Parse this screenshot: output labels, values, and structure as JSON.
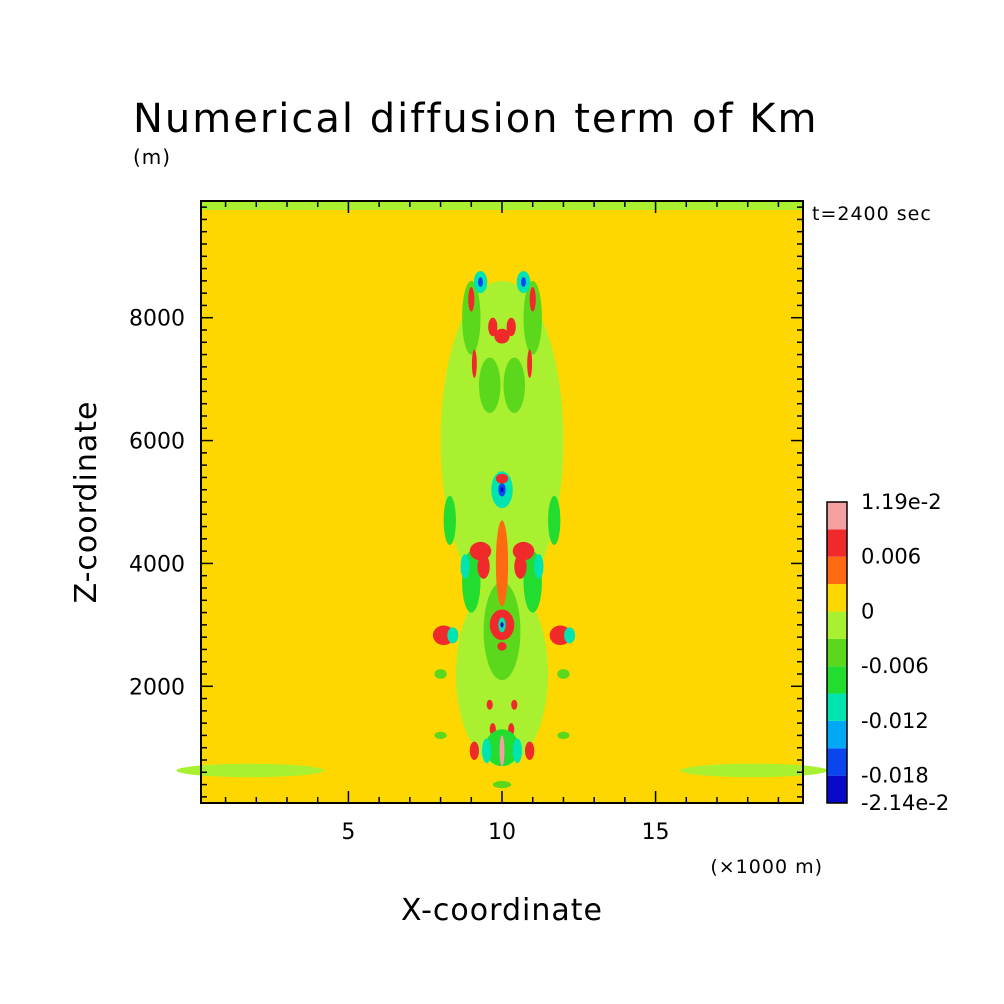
{
  "chart_data": {
    "type": "heatmap",
    "title": "Numerical diffusion term of Km",
    "subtitle": "(m)",
    "time_label": "t=2400 sec",
    "xlabel": "X-coordinate",
    "ylabel": "Z-coordinate",
    "x_unit": "(×1000 m)",
    "xlim": [
      0.2,
      19.8
    ],
    "ylim": [
      100,
      9900
    ],
    "x_ticks": [
      5,
      10,
      15
    ],
    "y_ticks": [
      2000,
      4000,
      6000,
      8000
    ],
    "background_value": 0,
    "colorbar": {
      "levels": [
        {
          "low": -0.0214,
          "high": -0.018,
          "color": "#0a08c8"
        },
        {
          "low": -0.018,
          "high": -0.015,
          "color": "#0a46f0"
        },
        {
          "low": -0.015,
          "high": -0.012,
          "color": "#00a8f5"
        },
        {
          "low": -0.012,
          "high": -0.009,
          "color": "#00e4b0"
        },
        {
          "low": -0.009,
          "high": -0.006,
          "color": "#22dc30"
        },
        {
          "low": -0.006,
          "high": -0.003,
          "color": "#5cd81c"
        },
        {
          "low": -0.003,
          "high": 0,
          "color": "#a8f030"
        },
        {
          "low": 0,
          "high": 0.003,
          "color": "#ffd700"
        },
        {
          "low": 0.003,
          "high": 0.006,
          "color": "#ff6a10"
        },
        {
          "low": 0.006,
          "high": 0.009,
          "color": "#f02a2a"
        },
        {
          "low": 0.009,
          "high": 0.0119,
          "color": "#f5a0a0"
        }
      ],
      "labels": [
        "1.19e-2",
        "0.006",
        "0",
        "-0.006",
        "-0.012",
        "-0.018",
        "-2.14e-2"
      ]
    },
    "features": [
      {
        "x": 10.0,
        "z": 6000,
        "rx": 2.0,
        "rz": 2600,
        "value": -0.002
      },
      {
        "x": 10.0,
        "z": 2200,
        "rx": 1.5,
        "rz": 1500,
        "value": -0.002
      },
      {
        "x": 1.8,
        "z": 630,
        "rx": 2.4,
        "rz": 110,
        "value": -0.002
      },
      {
        "x": 18.2,
        "z": 630,
        "rx": 2.4,
        "rz": 110,
        "value": -0.002
      },
      {
        "x": 9.0,
        "z": 8000,
        "rx": 0.3,
        "rz": 600,
        "value": -0.005
      },
      {
        "x": 11.0,
        "z": 8000,
        "rx": 0.3,
        "rz": 600,
        "value": -0.005
      },
      {
        "x": 9.6,
        "z": 6900,
        "rx": 0.35,
        "rz": 450,
        "value": -0.005
      },
      {
        "x": 10.4,
        "z": 6900,
        "rx": 0.35,
        "rz": 450,
        "value": -0.005
      },
      {
        "x": 8.3,
        "z": 4700,
        "rx": 0.2,
        "rz": 400,
        "value": -0.007
      },
      {
        "x": 11.7,
        "z": 4700,
        "rx": 0.2,
        "rz": 400,
        "value": -0.007
      },
      {
        "x": 9.0,
        "z": 3700,
        "rx": 0.3,
        "rz": 500,
        "value": -0.007
      },
      {
        "x": 11.0,
        "z": 3700,
        "rx": 0.3,
        "rz": 500,
        "value": -0.007
      },
      {
        "x": 10.0,
        "z": 2900,
        "rx": 0.6,
        "rz": 800,
        "value": -0.005
      },
      {
        "x": 9.3,
        "z": 8580,
        "rx": 0.22,
        "rz": 180,
        "value": -0.012
      },
      {
        "x": 10.7,
        "z": 8580,
        "rx": 0.22,
        "rz": 180,
        "value": -0.012
      },
      {
        "x": 9.3,
        "z": 8580,
        "rx": 0.08,
        "rz": 80,
        "value": -0.017
      },
      {
        "x": 10.7,
        "z": 8580,
        "rx": 0.08,
        "rz": 80,
        "value": -0.017
      },
      {
        "x": 10.0,
        "z": 7700,
        "rx": 0.25,
        "rz": 120,
        "value": 0.007
      },
      {
        "x": 9.7,
        "z": 7850,
        "rx": 0.15,
        "rz": 150,
        "value": 0.007
      },
      {
        "x": 10.3,
        "z": 7850,
        "rx": 0.15,
        "rz": 150,
        "value": 0.007
      },
      {
        "x": 9.0,
        "z": 8300,
        "rx": 0.1,
        "rz": 200,
        "value": 0.007
      },
      {
        "x": 11.0,
        "z": 8300,
        "rx": 0.1,
        "rz": 200,
        "value": 0.007
      },
      {
        "x": 9.1,
        "z": 7250,
        "rx": 0.08,
        "rz": 230,
        "value": 0.007
      },
      {
        "x": 10.9,
        "z": 7250,
        "rx": 0.08,
        "rz": 230,
        "value": 0.007
      },
      {
        "x": 10.0,
        "z": 5200,
        "rx": 0.35,
        "rz": 300,
        "value": -0.012
      },
      {
        "x": 10.0,
        "z": 5200,
        "rx": 0.12,
        "rz": 110,
        "value": -0.017
      },
      {
        "x": 10.0,
        "z": 5200,
        "rx": 0.05,
        "rz": 40,
        "value": -0.0214
      },
      {
        "x": 10.0,
        "z": 5380,
        "rx": 0.2,
        "rz": 80,
        "value": 0.007
      },
      {
        "x": 10.0,
        "z": 4000,
        "rx": 0.2,
        "rz": 700,
        "value": 0.005
      },
      {
        "x": 9.3,
        "z": 4200,
        "rx": 0.35,
        "rz": 150,
        "value": 0.007
      },
      {
        "x": 10.7,
        "z": 4200,
        "rx": 0.35,
        "rz": 150,
        "value": 0.007
      },
      {
        "x": 9.4,
        "z": 3950,
        "rx": 0.2,
        "rz": 200,
        "value": 0.007
      },
      {
        "x": 10.6,
        "z": 3950,
        "rx": 0.2,
        "rz": 200,
        "value": 0.007
      },
      {
        "x": 8.8,
        "z": 3950,
        "rx": 0.15,
        "rz": 200,
        "value": -0.012
      },
      {
        "x": 11.2,
        "z": 3950,
        "rx": 0.15,
        "rz": 200,
        "value": -0.012
      },
      {
        "x": 10.0,
        "z": 3000,
        "rx": 0.4,
        "rz": 250,
        "value": 0.007
      },
      {
        "x": 10.0,
        "z": 3000,
        "rx": 0.12,
        "rz": 120,
        "value": -0.012
      },
      {
        "x": 10.0,
        "z": 3000,
        "rx": 0.05,
        "rz": 45,
        "value": -0.0214
      },
      {
        "x": 10.0,
        "z": 2650,
        "rx": 0.15,
        "rz": 70,
        "value": 0.007
      },
      {
        "x": 8.1,
        "z": 2830,
        "rx": 0.35,
        "rz": 160,
        "value": 0.007
      },
      {
        "x": 8.4,
        "z": 2830,
        "rx": 0.18,
        "rz": 130,
        "value": -0.012
      },
      {
        "x": 11.9,
        "z": 2830,
        "rx": 0.35,
        "rz": 160,
        "value": 0.007
      },
      {
        "x": 12.2,
        "z": 2830,
        "rx": 0.18,
        "rz": 130,
        "value": -0.012
      },
      {
        "x": 9.6,
        "z": 1700,
        "rx": 0.1,
        "rz": 80,
        "value": 0.007
      },
      {
        "x": 10.4,
        "z": 1700,
        "rx": 0.1,
        "rz": 80,
        "value": 0.007
      },
      {
        "x": 9.7,
        "z": 1300,
        "rx": 0.1,
        "rz": 100,
        "value": 0.007
      },
      {
        "x": 10.3,
        "z": 1300,
        "rx": 0.1,
        "rz": 100,
        "value": 0.007
      },
      {
        "x": 10.0,
        "z": 1000,
        "rx": 0.55,
        "rz": 300,
        "value": -0.007
      },
      {
        "x": 9.5,
        "z": 950,
        "rx": 0.15,
        "rz": 200,
        "value": -0.012
      },
      {
        "x": 10.5,
        "z": 950,
        "rx": 0.15,
        "rz": 200,
        "value": -0.012
      },
      {
        "x": 9.1,
        "z": 950,
        "rx": 0.15,
        "rz": 150,
        "value": 0.007
      },
      {
        "x": 10.9,
        "z": 950,
        "rx": 0.15,
        "rz": 150,
        "value": 0.007
      },
      {
        "x": 10.0,
        "z": 950,
        "rx": 0.08,
        "rz": 250,
        "value": 0.011
      },
      {
        "x": 8.0,
        "z": 2200,
        "rx": 0.2,
        "rz": 80,
        "value": -0.006
      },
      {
        "x": 12.0,
        "z": 2200,
        "rx": 0.2,
        "rz": 80,
        "value": -0.006
      },
      {
        "x": 8.0,
        "z": 1200,
        "rx": 0.2,
        "rz": 60,
        "value": -0.006
      },
      {
        "x": 12.0,
        "z": 1200,
        "rx": 0.2,
        "rz": 60,
        "value": -0.006
      },
      {
        "x": 10.0,
        "z": 400,
        "rx": 0.3,
        "rz": 60,
        "value": -0.006
      }
    ]
  }
}
